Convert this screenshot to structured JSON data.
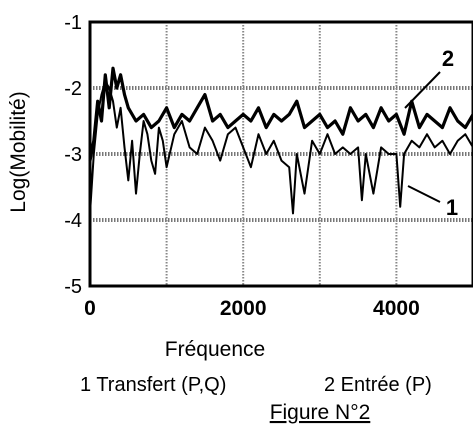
{
  "chart_data": {
    "type": "line",
    "title": "",
    "xlabel": "Fréquence",
    "ylabel": "Log(Mobilité)",
    "xlim": [
      0,
      5000
    ],
    "ylim": [
      -5,
      -1
    ],
    "x_ticks": [
      "0",
      "2000",
      "4000"
    ],
    "y_ticks": [
      "-1",
      "-2",
      "-3",
      "-4",
      "-5"
    ],
    "grid": true,
    "series": [
      {
        "name": "1",
        "color": "#000000",
        "x": [
          0,
          50,
          100,
          150,
          200,
          250,
          300,
          350,
          400,
          450,
          500,
          550,
          600,
          650,
          700,
          750,
          800,
          850,
          900,
          950,
          1000,
          1100,
          1200,
          1300,
          1400,
          1500,
          1600,
          1700,
          1800,
          1900,
          2000,
          2100,
          2200,
          2300,
          2400,
          2500,
          2600,
          2650,
          2700,
          2800,
          2900,
          3000,
          3100,
          3200,
          3300,
          3400,
          3500,
          3550,
          3600,
          3700,
          3800,
          3900,
          4000,
          4050,
          4100,
          4200,
          4300,
          4400,
          4500,
          4600,
          4700,
          4800,
          4900,
          5000
        ],
        "y": [
          -3.9,
          -3.0,
          -2.4,
          -2.1,
          -1.9,
          -2.0,
          -2.2,
          -2.6,
          -2.3,
          -2.9,
          -3.4,
          -2.8,
          -3.6,
          -3.0,
          -2.5,
          -2.7,
          -3.1,
          -3.3,
          -2.6,
          -2.8,
          -3.2,
          -2.7,
          -2.5,
          -2.9,
          -3.0,
          -2.6,
          -2.8,
          -3.1,
          -2.7,
          -2.6,
          -2.9,
          -3.2,
          -2.7,
          -3.0,
          -2.8,
          -3.1,
          -3.2,
          -3.9,
          -3.0,
          -3.6,
          -2.8,
          -3.0,
          -2.7,
          -3.0,
          -2.9,
          -3.0,
          -2.9,
          -3.7,
          -3.0,
          -3.6,
          -2.9,
          -3.0,
          -3.0,
          -3.8,
          -3.0,
          -2.8,
          -2.9,
          -2.7,
          -2.9,
          -2.8,
          -3.0,
          -2.8,
          -2.7,
          -2.9
        ]
      },
      {
        "name": "2",
        "color": "#000000",
        "x": [
          0,
          50,
          100,
          150,
          200,
          250,
          300,
          350,
          400,
          450,
          500,
          600,
          700,
          800,
          900,
          1000,
          1100,
          1200,
          1300,
          1400,
          1500,
          1600,
          1700,
          1800,
          1900,
          2000,
          2100,
          2200,
          2300,
          2400,
          2500,
          2600,
          2700,
          2800,
          2900,
          3000,
          3100,
          3200,
          3300,
          3400,
          3500,
          3600,
          3700,
          3800,
          3900,
          4000,
          4100,
          4200,
          4300,
          4400,
          4500,
          4600,
          4700,
          4800,
          4900,
          5000
        ],
        "y": [
          -3.1,
          -2.8,
          -2.2,
          -2.5,
          -1.8,
          -2.3,
          -1.7,
          -2.0,
          -1.8,
          -2.1,
          -2.3,
          -2.5,
          -2.4,
          -2.6,
          -2.5,
          -2.3,
          -2.6,
          -2.4,
          -2.5,
          -2.3,
          -2.1,
          -2.5,
          -2.4,
          -2.6,
          -2.5,
          -2.4,
          -2.5,
          -2.3,
          -2.6,
          -2.4,
          -2.5,
          -2.4,
          -2.2,
          -2.6,
          -2.5,
          -2.4,
          -2.6,
          -2.5,
          -2.7,
          -2.3,
          -2.5,
          -2.4,
          -2.6,
          -2.3,
          -2.5,
          -2.4,
          -2.7,
          -2.2,
          -2.6,
          -2.4,
          -2.5,
          -2.6,
          -2.3,
          -2.5,
          -2.6,
          -2.4
        ]
      }
    ],
    "annotations": [
      "2",
      "1"
    ],
    "legend": [
      "1  Transfert (P,Q)",
      "2 Entrée (P)"
    ],
    "caption": "Figure  N°2"
  }
}
